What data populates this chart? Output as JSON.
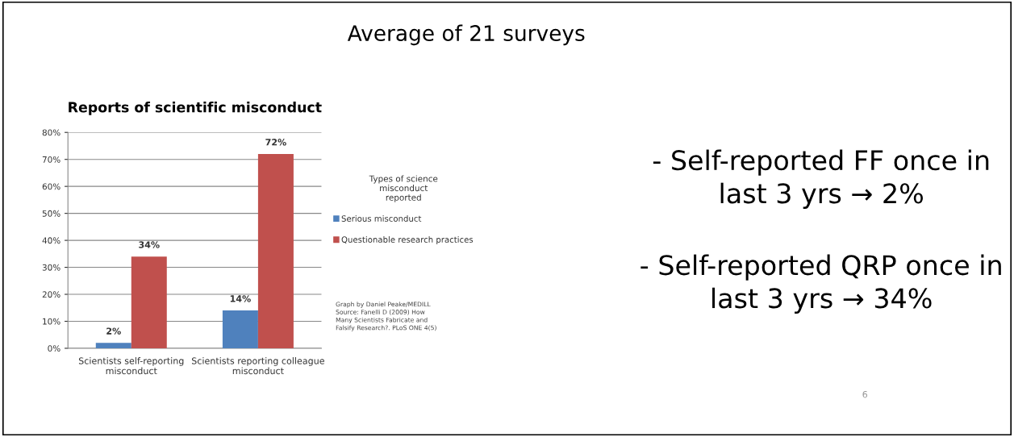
{
  "chart_data": {
    "type": "bar",
    "title": "Reports of scientific misconduct",
    "categories": [
      "Scientists self-reporting misconduct",
      "Scientists reporting colleague misconduct"
    ],
    "series": [
      {
        "name": "Serious misconduct",
        "color": "#4f81bd",
        "values": [
          2,
          14
        ]
      },
      {
        "name": "Questionable research practices",
        "color": "#c0504d",
        "values": [
          34,
          72
        ]
      }
    ],
    "ylim": [
      0,
      80
    ],
    "yticks": [
      {
        "value": 0,
        "label": "0%"
      },
      {
        "value": 10,
        "label": "10%"
      },
      {
        "value": 20,
        "label": "20%"
      },
      {
        "value": 30,
        "label": "30%"
      },
      {
        "value": 40,
        "label": "40%"
      },
      {
        "value": 50,
        "label": "50%"
      },
      {
        "value": 60,
        "label": "60%"
      },
      {
        "value": 70,
        "label": "70%"
      },
      {
        "value": 80,
        "label": "80%"
      }
    ],
    "value_labels": [
      "2%",
      "14%",
      "34%",
      "72%"
    ],
    "grid": "y",
    "legend": "right",
    "legend_title": "Types of science misconduct reported",
    "annotations": [
      "Graph by Daniel Peake/MEDILL\nSource: Fanelli D (2009) How\nMany Scientists Fabricate and\nFalsify Research?. PLoS ONE 4(5)",
      "Average of 21 surveys",
      "- Self-reported FF once in\nlast 3 yrs → 2%",
      "- Self-reported QRP once in\nlast 3 yrs → 34%",
      "6"
    ]
  }
}
